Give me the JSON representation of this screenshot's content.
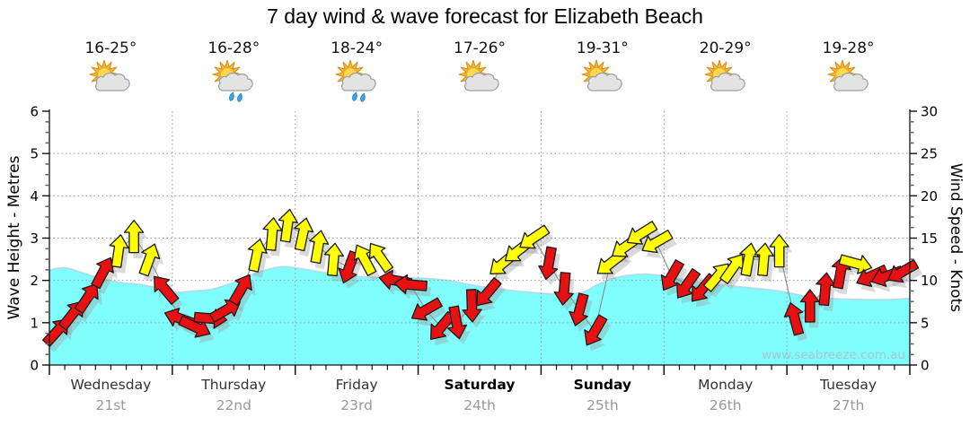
{
  "title": "7 day wind & wave forecast for Elizabeth Beach",
  "watermark": "www.seabreeze.com.au",
  "axes": {
    "left_title": "Wave Height - Metres",
    "right_title": "Wind Speed - Knots"
  },
  "days": [
    {
      "name": "Wednesday",
      "date": "21st",
      "temp": "16-25°",
      "icon": "sun-cloud",
      "bold": false
    },
    {
      "name": "Thursday",
      "date": "22nd",
      "temp": "16-28°",
      "icon": "sun-cloud-rain",
      "bold": false
    },
    {
      "name": "Friday",
      "date": "23rd",
      "temp": "18-24°",
      "icon": "sun-cloud-rain",
      "bold": false
    },
    {
      "name": "Saturday",
      "date": "24th",
      "temp": "17-26°",
      "icon": "sun-cloud",
      "bold": true
    },
    {
      "name": "Sunday",
      "date": "25th",
      "temp": "19-31°",
      "icon": "sun-cloud",
      "bold": true
    },
    {
      "name": "Monday",
      "date": "26th",
      "temp": "20-29°",
      "icon": "sun-cloud",
      "bold": false
    },
    {
      "name": "Tuesday",
      "date": "27th",
      "temp": "19-28°",
      "icon": "sun-cloud",
      "bold": false
    }
  ],
  "chart_data": {
    "type": "area",
    "title": "7 day wind & wave forecast for Elizabeth Beach",
    "x_unit": "hours from start of Wednesday (7 days = 168 h)",
    "left_axis": {
      "label": "Wave Height - Metres",
      "min": 0,
      "max": 6,
      "ticks": [
        0,
        1,
        2,
        3,
        4,
        5,
        6
      ]
    },
    "right_axis": {
      "label": "Wind Speed - Knots",
      "min": 0,
      "max": 30,
      "ticks": [
        0,
        5,
        10,
        15,
        20,
        25,
        30
      ]
    },
    "grid": true,
    "wave_height_m": [
      [
        0,
        2.25
      ],
      [
        3,
        2.3
      ],
      [
        6,
        2.2
      ],
      [
        10,
        2.05
      ],
      [
        14,
        1.95
      ],
      [
        18,
        1.9
      ],
      [
        22,
        1.8
      ],
      [
        25,
        1.72
      ],
      [
        28,
        1.75
      ],
      [
        32,
        1.8
      ],
      [
        37,
        2.0
      ],
      [
        41,
        2.2
      ],
      [
        45,
        2.32
      ],
      [
        48,
        2.3
      ],
      [
        53,
        2.2
      ],
      [
        57,
        2.12
      ],
      [
        62,
        2.08
      ],
      [
        68,
        2.06
      ],
      [
        73,
        2.05
      ],
      [
        78,
        2.0
      ],
      [
        83,
        1.88
      ],
      [
        89,
        1.78
      ],
      [
        94,
        1.72
      ],
      [
        99,
        1.68
      ],
      [
        104,
        1.72
      ],
      [
        107,
        1.9
      ],
      [
        111,
        2.08
      ],
      [
        116,
        2.15
      ],
      [
        119,
        2.12
      ],
      [
        124,
        2.02
      ],
      [
        129,
        1.92
      ],
      [
        134,
        1.86
      ],
      [
        139,
        1.8
      ],
      [
        144,
        1.72
      ],
      [
        148,
        1.62
      ],
      [
        153,
        1.57
      ],
      [
        159,
        1.55
      ],
      [
        164,
        1.55
      ],
      [
        168,
        1.58
      ]
    ],
    "wind_arrows": [
      {
        "t": 1.5,
        "knots": 4,
        "dir_deg": 42,
        "color": "red"
      },
      {
        "t": 4.5,
        "knots": 6,
        "dir_deg": 38,
        "color": "red"
      },
      {
        "t": 7.5,
        "knots": 8,
        "dir_deg": 34,
        "color": "red"
      },
      {
        "t": 10.5,
        "knots": 11,
        "dir_deg": 28,
        "color": "red"
      },
      {
        "t": 13.5,
        "knots": 13.5,
        "dir_deg": 8,
        "color": "yellow"
      },
      {
        "t": 16.5,
        "knots": 15.2,
        "dir_deg": 0,
        "color": "yellow"
      },
      {
        "t": 19.5,
        "knots": 12.5,
        "dir_deg": 20,
        "color": "yellow"
      },
      {
        "t": 22.5,
        "knots": 9,
        "dir_deg": -40,
        "color": "red"
      },
      {
        "t": 25.5,
        "knots": 5.5,
        "dir_deg": -70,
        "color": "red"
      },
      {
        "t": 28.5,
        "knots": 4.5,
        "dir_deg": 115,
        "color": "red"
      },
      {
        "t": 31.5,
        "knots": 5.5,
        "dir_deg": 95,
        "color": "red"
      },
      {
        "t": 34.5,
        "knots": 6.5,
        "dir_deg": 60,
        "color": "red"
      },
      {
        "t": 37.5,
        "knots": 9,
        "dir_deg": 30,
        "color": "red"
      },
      {
        "t": 40.5,
        "knots": 13,
        "dir_deg": 12,
        "color": "yellow"
      },
      {
        "t": 43.5,
        "knots": 15.5,
        "dir_deg": 5,
        "color": "yellow"
      },
      {
        "t": 46.5,
        "knots": 16.5,
        "dir_deg": 8,
        "color": "yellow"
      },
      {
        "t": 49.5,
        "knots": 15.5,
        "dir_deg": 12,
        "color": "yellow"
      },
      {
        "t": 52.5,
        "knots": 14,
        "dir_deg": 10,
        "color": "yellow"
      },
      {
        "t": 55.5,
        "knots": 12.5,
        "dir_deg": 5,
        "color": "yellow"
      },
      {
        "t": 58.5,
        "knots": 11.5,
        "dir_deg": -160,
        "color": "red"
      },
      {
        "t": 61.5,
        "knots": 12.5,
        "dir_deg": -28,
        "color": "yellow"
      },
      {
        "t": 64.5,
        "knots": 12.8,
        "dir_deg": -35,
        "color": "yellow"
      },
      {
        "t": 67.5,
        "knots": 10,
        "dir_deg": -80,
        "color": "red"
      },
      {
        "t": 70.5,
        "knots": 9.5,
        "dir_deg": -85,
        "color": "red"
      },
      {
        "t": 73.5,
        "knots": 6.5,
        "dir_deg": -120,
        "color": "red"
      },
      {
        "t": 76.5,
        "knots": 4.5,
        "dir_deg": -140,
        "color": "red"
      },
      {
        "t": 79.5,
        "knots": 5,
        "dir_deg": 170,
        "color": "red"
      },
      {
        "t": 82.5,
        "knots": 7,
        "dir_deg": 178,
        "color": "red"
      },
      {
        "t": 85.5,
        "knots": 8.5,
        "dir_deg": -140,
        "color": "red"
      },
      {
        "t": 88.5,
        "knots": 12,
        "dir_deg": -130,
        "color": "yellow"
      },
      {
        "t": 91.5,
        "knots": 13.5,
        "dir_deg": -128,
        "color": "yellow"
      },
      {
        "t": 94.5,
        "knots": 15,
        "dir_deg": -124,
        "color": "yellow"
      },
      {
        "t": 97.5,
        "knots": 12,
        "dir_deg": -170,
        "color": "red"
      },
      {
        "t": 100.5,
        "knots": 9,
        "dir_deg": -175,
        "color": "red"
      },
      {
        "t": 103.5,
        "knots": 6.5,
        "dir_deg": -165,
        "color": "red"
      },
      {
        "t": 106.5,
        "knots": 4,
        "dir_deg": -150,
        "color": "red"
      },
      {
        "t": 109.5,
        "knots": 12,
        "dir_deg": -128,
        "color": "yellow"
      },
      {
        "t": 112.5,
        "knots": 14,
        "dir_deg": -125,
        "color": "yellow"
      },
      {
        "t": 115.5,
        "knots": 15.5,
        "dir_deg": -122,
        "color": "yellow"
      },
      {
        "t": 118.5,
        "knots": 14.5,
        "dir_deg": -120,
        "color": "yellow"
      },
      {
        "t": 121.5,
        "knots": 10.5,
        "dir_deg": -150,
        "color": "red"
      },
      {
        "t": 124.5,
        "knots": 9.5,
        "dir_deg": -145,
        "color": "red"
      },
      {
        "t": 127.5,
        "knots": 9,
        "dir_deg": -140,
        "color": "red"
      },
      {
        "t": 130.5,
        "knots": 10.5,
        "dir_deg": 40,
        "color": "yellow"
      },
      {
        "t": 133.5,
        "knots": 11.5,
        "dir_deg": 35,
        "color": "yellow"
      },
      {
        "t": 136.5,
        "knots": 12.5,
        "dir_deg": 10,
        "color": "yellow"
      },
      {
        "t": 139.5,
        "knots": 12.5,
        "dir_deg": 5,
        "color": "yellow"
      },
      {
        "t": 142.5,
        "knots": 13.5,
        "dir_deg": 0,
        "color": "yellow"
      },
      {
        "t": 145.5,
        "knots": 5.5,
        "dir_deg": -15,
        "color": "red"
      },
      {
        "t": 148.5,
        "knots": 7,
        "dir_deg": 0,
        "color": "red"
      },
      {
        "t": 151.5,
        "knots": 9,
        "dir_deg": 5,
        "color": "red"
      },
      {
        "t": 154.5,
        "knots": 11,
        "dir_deg": 10,
        "color": "red"
      },
      {
        "t": 157.5,
        "knots": 12,
        "dir_deg": 105,
        "color": "yellow"
      },
      {
        "t": 160.5,
        "knots": 10.5,
        "dir_deg": -115,
        "color": "red"
      },
      {
        "t": 163.5,
        "knots": 10.5,
        "dir_deg": -110,
        "color": "red"
      },
      {
        "t": 166.5,
        "knots": 11,
        "dir_deg": -120,
        "color": "red"
      }
    ],
    "colors": {
      "wave_fill": "#80fdfd",
      "wave_edge": "#b9c9d9",
      "arrow_red": "#e81111",
      "arrow_yellow": "#ffff00",
      "arrow_outline": "#1a1a1a",
      "grid": "#999999",
      "axis": "#111111"
    },
    "legend": "arrow colour = wind strength band (red lighter, yellow stronger); arrow direction = wind direction; arrow height = knots on right axis"
  }
}
